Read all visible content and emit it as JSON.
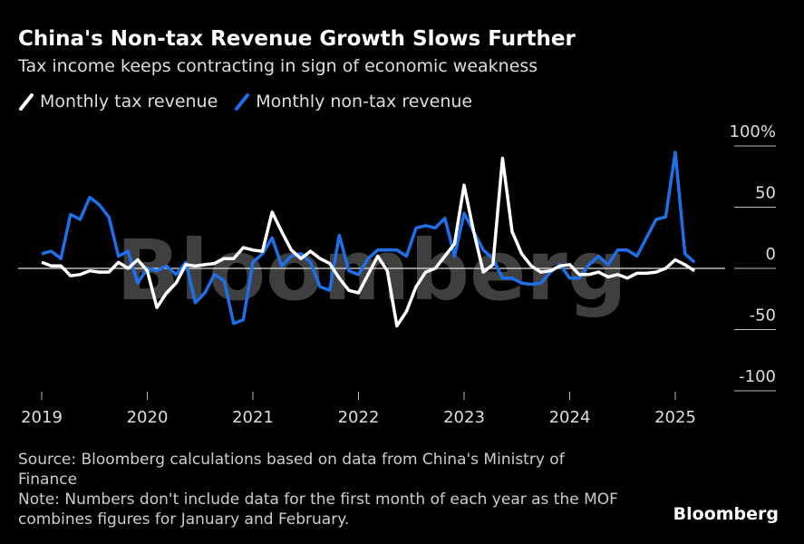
{
  "brand": "Bloomberg",
  "chart_data": {
    "type": "line",
    "title": "China's Non-tax Revenue Growth Slows Further",
    "subtitle": "Tax income keeps contracting in sign of economic weakness",
    "source": "Source: Bloomberg calculations based on data from China's Ministry of Finance",
    "note": "Note: Numbers don't include data for the first month of each year as the MOF combines figures for January and February.",
    "categories": [
      "2019",
      null,
      null,
      null,
      null,
      null,
      null,
      null,
      null,
      null,
      null,
      "2020",
      null,
      null,
      null,
      null,
      null,
      null,
      null,
      null,
      null,
      null,
      "2021",
      null,
      null,
      null,
      null,
      null,
      null,
      null,
      null,
      null,
      null,
      "2022",
      null,
      null,
      null,
      null,
      null,
      null,
      null,
      null,
      null,
      null,
      "2023",
      null,
      null,
      null,
      null,
      null,
      null,
      null,
      null,
      null,
      null,
      "2024",
      null,
      null,
      null,
      null,
      null,
      null,
      null,
      null,
      null,
      null,
      "2025",
      null,
      null
    ],
    "series": [
      {
        "name": "Monthly tax revenue",
        "color": "#ffffff",
        "values": [
          5,
          2,
          2,
          -6,
          -5,
          -2,
          -3,
          -3,
          5,
          0,
          7,
          -2,
          -32,
          -20,
          -12,
          3,
          2,
          3,
          4,
          8,
          8,
          17,
          15,
          14,
          46,
          30,
          15,
          8,
          14,
          8,
          4,
          -8,
          -18,
          -20,
          -5,
          10,
          -2,
          -47,
          -35,
          -15,
          -3,
          0,
          10,
          20,
          68,
          30,
          -3,
          3,
          90,
          30,
          12,
          2,
          -3,
          -2,
          2,
          3,
          -5,
          -5,
          -3,
          -7,
          -5,
          -8,
          -4,
          -4,
          -3,
          0,
          7,
          3,
          -2
        ]
      },
      {
        "name": "Monthly non-tax revenue",
        "color": "#1f6fe8",
        "values": [
          12,
          14,
          8,
          44,
          40,
          58,
          52,
          42,
          10,
          14,
          -12,
          0,
          -2,
          2,
          -5,
          5,
          -28,
          -20,
          -5,
          -10,
          -45,
          -42,
          5,
          12,
          25,
          2,
          10,
          12,
          5,
          -15,
          -18,
          27,
          -2,
          -5,
          8,
          15,
          15,
          15,
          10,
          33,
          35,
          33,
          41,
          10,
          45,
          30,
          15,
          8,
          -8,
          -8,
          -12,
          -13,
          -12,
          -3,
          3,
          -8,
          -8,
          3,
          10,
          3,
          15,
          15,
          10,
          25,
          40,
          42,
          95,
          12,
          5
        ]
      }
    ],
    "ylim": [
      -100,
      100
    ],
    "yticks": [
      {
        "value": 100,
        "label": "100%"
      },
      50,
      0,
      -50,
      -100
    ]
  }
}
